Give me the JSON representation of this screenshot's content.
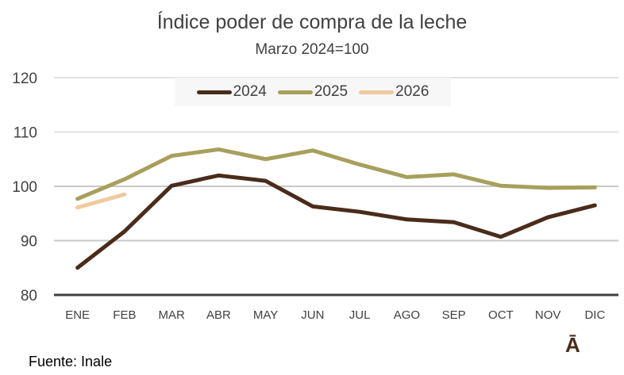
{
  "chart_data": {
    "type": "line",
    "title": "Índice poder de compra de la leche",
    "subtitle": "Marzo 2024=100",
    "xlabel": "",
    "ylabel": "",
    "categories": [
      "ENE",
      "FEB",
      "MAR",
      "ABR",
      "MAY",
      "JUN",
      "JUL",
      "AGO",
      "SEP",
      "OCT",
      "NOV",
      "DIC"
    ],
    "ylim": [
      80,
      120
    ],
    "yticks": [
      80,
      90,
      100,
      110,
      120
    ],
    "grid": true,
    "legend_position": "top-center",
    "series": [
      {
        "name": "2024",
        "color": "#4a2c1a",
        "values": [
          85.0,
          91.7,
          100.1,
          102.0,
          101.0,
          96.3,
          95.3,
          93.9,
          93.4,
          90.7,
          94.3,
          96.5
        ]
      },
      {
        "name": "2025",
        "color": "#a89f5c",
        "values": [
          97.7,
          101.3,
          105.6,
          106.8,
          105.0,
          106.6,
          104.0,
          101.7,
          102.2,
          100.1,
          99.7,
          99.8
        ]
      },
      {
        "name": "2026",
        "color": "#f0c9a0",
        "values": [
          96.1,
          98.5
        ]
      }
    ]
  },
  "footer": {
    "source": "Fuente: Inale",
    "logo_glyph": "Ā"
  }
}
